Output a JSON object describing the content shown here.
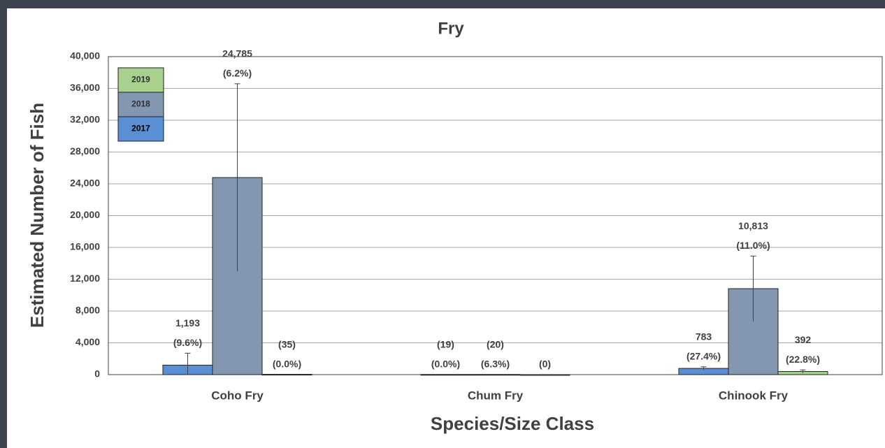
{
  "chart_data": {
    "type": "bar",
    "title": "Fry",
    "x_label": "Species/Size Class",
    "y_label": "Estimated Number of Fish",
    "categories": [
      "Coho Fry",
      "Chum Fry",
      "Chinook Fry"
    ],
    "series": [
      {
        "name": "2017",
        "color": "#5b8fd3",
        "values": [
          1193,
          19,
          783
        ],
        "errors": [
          1500,
          0,
          200
        ],
        "value_labels": [
          "1,193",
          "(19)",
          "783"
        ],
        "percent_labels": [
          "(9.6%)",
          "(0.0%)",
          "(27.4%)"
        ]
      },
      {
        "name": "2018",
        "color": "#8497b0",
        "values": [
          24785,
          20,
          10813
        ],
        "errors": [
          11800,
          0,
          4100
        ],
        "value_labels": [
          "24,785",
          "(20)",
          "10,813"
        ],
        "percent_labels": [
          "(6.2%)",
          "(6.3%)",
          "(11.0%)"
        ]
      },
      {
        "name": "2019",
        "color": "#a9d18e",
        "values": [
          35,
          0,
          392
        ],
        "errors": [
          0,
          0,
          200
        ],
        "value_labels": [
          "(35)",
          "(0)",
          "392"
        ],
        "percent_labels": [
          "(0.0%)",
          null,
          "(22.8%)"
        ]
      }
    ],
    "ylim": [
      0,
      40000
    ],
    "yticks": [
      0,
      {
        "value": 4000,
        "label": "4,000"
      },
      {
        "value": 8000,
        "label": "8,000"
      },
      {
        "value": 12000,
        "label": "12,000"
      },
      {
        "value": 16000,
        "label": "16,000"
      },
      {
        "value": 20000,
        "label": "20,000"
      },
      {
        "value": 24000,
        "label": "24,000"
      },
      {
        "value": 28000,
        "label": "28,000"
      },
      {
        "value": 32000,
        "label": "32,000"
      },
      {
        "value": 36000,
        "label": "36,000"
      },
      {
        "value": 40000,
        "label": "40,000"
      }
    ],
    "grid": true,
    "legend": "upper left"
  }
}
